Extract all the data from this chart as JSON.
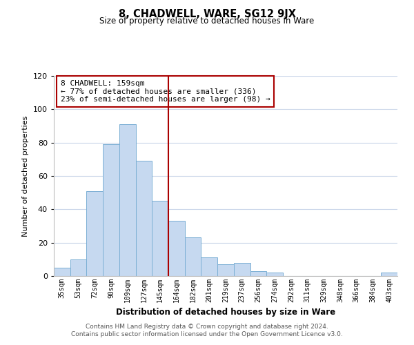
{
  "title": "8, CHADWELL, WARE, SG12 9JX",
  "subtitle": "Size of property relative to detached houses in Ware",
  "xlabel": "Distribution of detached houses by size in Ware",
  "ylabel": "Number of detached properties",
  "bar_labels": [
    "35sqm",
    "53sqm",
    "72sqm",
    "90sqm",
    "109sqm",
    "127sqm",
    "145sqm",
    "164sqm",
    "182sqm",
    "201sqm",
    "219sqm",
    "237sqm",
    "256sqm",
    "274sqm",
    "292sqm",
    "311sqm",
    "329sqm",
    "348sqm",
    "366sqm",
    "384sqm",
    "403sqm"
  ],
  "bar_values": [
    5,
    10,
    51,
    79,
    91,
    69,
    45,
    33,
    23,
    11,
    7,
    8,
    3,
    2,
    0,
    0,
    0,
    0,
    0,
    0,
    2
  ],
  "bar_color": "#c6d9f0",
  "bar_edge_color": "#7bafd4",
  "ylim": [
    0,
    120
  ],
  "yticks": [
    0,
    20,
    40,
    60,
    80,
    100,
    120
  ],
  "vline_index": 7,
  "vline_color": "#aa0000",
  "annotation_title": "8 CHADWELL: 159sqm",
  "annotation_line1": "← 77% of detached houses are smaller (336)",
  "annotation_line2": "23% of semi-detached houses are larger (98) →",
  "annotation_box_color": "#ffffff",
  "annotation_box_edge": "#aa0000",
  "footer1": "Contains HM Land Registry data © Crown copyright and database right 2024.",
  "footer2": "Contains public sector information licensed under the Open Government Licence v3.0.",
  "background_color": "#ffffff",
  "grid_color": "#c8d4e8"
}
